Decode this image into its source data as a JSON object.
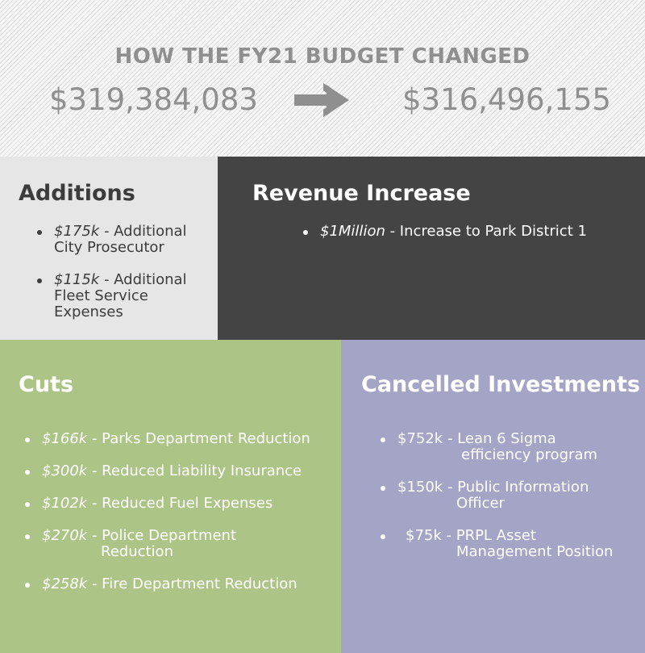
{
  "header": {
    "title": "HOW THE FY21 BUDGET CHANGED",
    "old_amount": "$319,384,083",
    "new_amount": "$316,496,155",
    "arrow_icon": "arrow-right-icon",
    "text_color": "#8f8f8f"
  },
  "additions": {
    "title": "Additions",
    "items": [
      {
        "amount": "$175k",
        "text": " - Additional City Prosecutor"
      },
      {
        "amount": "$115k",
        "text": " - Additional Fleet Service Expenses"
      }
    ],
    "bg_color": "#e6e6e6"
  },
  "revenue": {
    "title": "Revenue Increase",
    "items": [
      {
        "amount": "$1Million",
        "text": " - Increase to Park District 1"
      }
    ],
    "bg_color": "#444444"
  },
  "cuts": {
    "title": "Cuts",
    "items": [
      {
        "amount": "$166k",
        "text": " - Parks Department Reduction"
      },
      {
        "amount": "$300k",
        "text": " - Reduced Liability Insurance"
      },
      {
        "amount": "$102k",
        "text": " - Reduced Fuel Expenses"
      },
      {
        "amount": "$270k",
        "text": " - Police Department",
        "text2": "Reduction"
      },
      {
        "amount": "$258k",
        "text": " - Fire Department Reduction"
      }
    ],
    "bg_color": "#acc586"
  },
  "cancelled": {
    "title": "Cancelled Investments",
    "items": [
      {
        "line1": "$752k - Lean 6 Sigma",
        "line2": "efficiency program"
      },
      {
        "line1": "$150k - Public Information",
        "line2": "Officer"
      },
      {
        "line1": "$75k - PRPL Asset",
        "line2": "Management Position"
      }
    ],
    "bg_color": "#a3a4c6"
  }
}
